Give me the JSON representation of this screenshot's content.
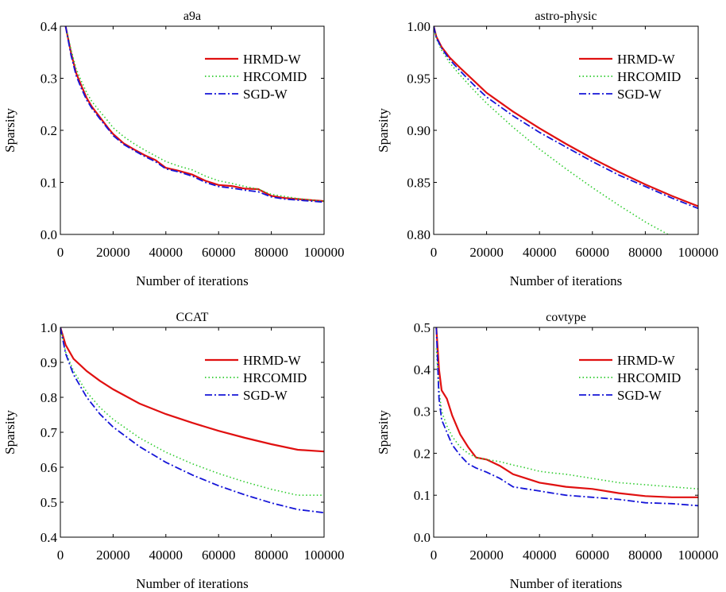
{
  "colors": {
    "hrmd": "#e01010",
    "hrcomid": "#2ecc2e",
    "sgd": "#1515d8",
    "axis": "#000000"
  },
  "chart_data": [
    {
      "type": "line",
      "title": "a9a",
      "xlabel": "Number of iterations",
      "ylabel": "Sparsity",
      "xlim": [
        0,
        100000
      ],
      "ylim": [
        0,
        0.4
      ],
      "xticks": [
        0,
        20000,
        40000,
        60000,
        80000,
        100000
      ],
      "yticks": [
        0.0,
        0.1,
        0.2,
        0.3,
        0.4
      ],
      "ytick_labels": [
        "0.0",
        "0.1",
        "0.2",
        "0.3",
        "0.4"
      ],
      "legend_position": "top-right",
      "series": [
        {
          "name": "HRMD-W",
          "style": "solid",
          "x": [
            2000,
            4000,
            6000,
            8000,
            10000,
            12000,
            15000,
            18000,
            20000,
            24000,
            28000,
            32000,
            36000,
            40000,
            45000,
            50000,
            55000,
            60000,
            65000,
            70000,
            75000,
            80000,
            85000,
            90000,
            95000,
            100000
          ],
          "y": [
            0.4,
            0.35,
            0.31,
            0.285,
            0.262,
            0.245,
            0.225,
            0.205,
            0.193,
            0.175,
            0.163,
            0.152,
            0.143,
            0.128,
            0.122,
            0.115,
            0.103,
            0.095,
            0.093,
            0.088,
            0.087,
            0.074,
            0.07,
            0.068,
            0.066,
            0.064
          ]
        },
        {
          "name": "HRCOMID",
          "style": "dotted",
          "x": [
            2000,
            4000,
            6000,
            8000,
            10000,
            12000,
            15000,
            18000,
            20000,
            24000,
            28000,
            32000,
            36000,
            40000,
            45000,
            50000,
            55000,
            60000,
            65000,
            70000,
            75000,
            80000,
            85000,
            90000,
            95000,
            100000
          ],
          "y": [
            0.4,
            0.356,
            0.318,
            0.294,
            0.272,
            0.255,
            0.236,
            0.218,
            0.205,
            0.188,
            0.174,
            0.162,
            0.151,
            0.14,
            0.131,
            0.124,
            0.112,
            0.103,
            0.098,
            0.092,
            0.087,
            0.077,
            0.073,
            0.069,
            0.066,
            0.064
          ]
        },
        {
          "name": "SGD-W",
          "style": "dashdot",
          "x": [
            2000,
            4000,
            6000,
            8000,
            10000,
            12000,
            15000,
            18000,
            20000,
            24000,
            28000,
            32000,
            36000,
            40000,
            45000,
            50000,
            55000,
            60000,
            65000,
            70000,
            75000,
            80000,
            85000,
            90000,
            95000,
            100000
          ],
          "y": [
            0.4,
            0.345,
            0.305,
            0.28,
            0.258,
            0.242,
            0.222,
            0.203,
            0.19,
            0.173,
            0.161,
            0.15,
            0.14,
            0.126,
            0.12,
            0.112,
            0.1,
            0.092,
            0.089,
            0.085,
            0.082,
            0.072,
            0.068,
            0.066,
            0.064,
            0.062
          ]
        }
      ]
    },
    {
      "type": "line",
      "title": "astro-physic",
      "xlabel": "Number of iterations",
      "ylabel": "Sparsity",
      "xlim": [
        0,
        100000
      ],
      "ylim": [
        0.8,
        1.0
      ],
      "xticks": [
        0,
        20000,
        40000,
        60000,
        80000,
        100000
      ],
      "yticks": [
        0.8,
        0.85,
        0.9,
        0.95,
        1.0
      ],
      "ytick_labels": [
        "0.80",
        "0.85",
        "0.90",
        "0.95",
        "1.00"
      ],
      "legend_position": "top-right",
      "series": [
        {
          "name": "HRMD-W",
          "style": "solid",
          "x": [
            0,
            1000,
            3000,
            6000,
            10000,
            15000,
            20000,
            30000,
            40000,
            50000,
            60000,
            70000,
            80000,
            90000,
            100000
          ],
          "y": [
            1.0,
            0.99,
            0.98,
            0.97,
            0.96,
            0.948,
            0.936,
            0.918,
            0.902,
            0.887,
            0.873,
            0.86,
            0.848,
            0.837,
            0.827
          ]
        },
        {
          "name": "HRCOMID",
          "style": "dotted",
          "x": [
            0,
            1000,
            3000,
            6000,
            10000,
            15000,
            20000,
            30000,
            40000,
            50000,
            60000,
            70000,
            80000,
            90000,
            100000
          ],
          "y": [
            1.0,
            0.988,
            0.977,
            0.965,
            0.953,
            0.939,
            0.926,
            0.903,
            0.882,
            0.863,
            0.845,
            0.828,
            0.812,
            0.798,
            0.786
          ]
        },
        {
          "name": "SGD-W",
          "style": "dashdot",
          "x": [
            0,
            1000,
            3000,
            6000,
            10000,
            15000,
            20000,
            30000,
            40000,
            50000,
            60000,
            70000,
            80000,
            90000,
            100000
          ],
          "y": [
            1.0,
            0.989,
            0.979,
            0.968,
            0.957,
            0.944,
            0.932,
            0.914,
            0.898,
            0.884,
            0.87,
            0.857,
            0.846,
            0.835,
            0.825
          ]
        }
      ]
    },
    {
      "type": "line",
      "title": "CCAT",
      "xlabel": "Number of iterations",
      "ylabel": "Sparsity",
      "xlim": [
        0,
        100000
      ],
      "ylim": [
        0.4,
        1.0
      ],
      "xticks": [
        0,
        20000,
        40000,
        60000,
        80000,
        100000
      ],
      "yticks": [
        0.4,
        0.5,
        0.6,
        0.7,
        0.8,
        0.9,
        1.0
      ],
      "ytick_labels": [
        "0.4",
        "0.5",
        "0.6",
        "0.7",
        "0.8",
        "0.9",
        "1.0"
      ],
      "legend_position": "top-right",
      "series": [
        {
          "name": "HRMD-W",
          "style": "solid",
          "x": [
            0,
            2000,
            5000,
            10000,
            15000,
            20000,
            30000,
            40000,
            50000,
            60000,
            70000,
            80000,
            90000,
            100000
          ],
          "y": [
            1.0,
            0.95,
            0.91,
            0.875,
            0.847,
            0.823,
            0.782,
            0.752,
            0.727,
            0.704,
            0.684,
            0.666,
            0.65,
            0.645
          ]
        },
        {
          "name": "HRCOMID",
          "style": "dotted",
          "x": [
            0,
            2000,
            5000,
            10000,
            15000,
            20000,
            30000,
            40000,
            50000,
            60000,
            70000,
            80000,
            90000,
            100000
          ],
          "y": [
            1.0,
            0.93,
            0.875,
            0.815,
            0.771,
            0.737,
            0.684,
            0.643,
            0.61,
            0.582,
            0.558,
            0.537,
            0.52,
            0.52
          ]
        },
        {
          "name": "SGD-W",
          "style": "dashdot",
          "x": [
            0,
            2000,
            5000,
            10000,
            15000,
            20000,
            30000,
            40000,
            50000,
            60000,
            70000,
            80000,
            90000,
            100000
          ],
          "y": [
            1.0,
            0.925,
            0.865,
            0.8,
            0.752,
            0.715,
            0.659,
            0.614,
            0.578,
            0.547,
            0.521,
            0.498,
            0.479,
            0.47
          ]
        }
      ]
    },
    {
      "type": "line",
      "title": "covtype",
      "xlabel": "Number of iterations",
      "ylabel": "Sparsity",
      "xlim": [
        0,
        100000
      ],
      "ylim": [
        0,
        0.5
      ],
      "xticks": [
        0,
        20000,
        40000,
        60000,
        80000,
        100000
      ],
      "yticks": [
        0.0,
        0.1,
        0.2,
        0.3,
        0.4,
        0.5
      ],
      "ytick_labels": [
        "0.0",
        "0.1",
        "0.2",
        "0.3",
        "0.4",
        "0.5"
      ],
      "legend_position": "top-right",
      "series": [
        {
          "name": "HRMD-W",
          "style": "solid",
          "x": [
            1000,
            2000,
            3000,
            5000,
            7000,
            10000,
            13000,
            16000,
            20000,
            25000,
            30000,
            35000,
            40000,
            45000,
            50000,
            60000,
            70000,
            80000,
            90000,
            100000
          ],
          "y": [
            0.5,
            0.4,
            0.35,
            0.33,
            0.29,
            0.245,
            0.215,
            0.19,
            0.185,
            0.17,
            0.15,
            0.14,
            0.13,
            0.125,
            0.12,
            0.115,
            0.105,
            0.098,
            0.095,
            0.095
          ]
        },
        {
          "name": "HRCOMID",
          "style": "dotted",
          "x": [
            1000,
            2000,
            3000,
            5000,
            7000,
            10000,
            13000,
            16000,
            20000,
            25000,
            30000,
            35000,
            40000,
            45000,
            50000,
            60000,
            70000,
            80000,
            90000,
            100000
          ],
          "y": [
            0.45,
            0.35,
            0.3,
            0.265,
            0.24,
            0.215,
            0.2,
            0.19,
            0.185,
            0.18,
            0.172,
            0.165,
            0.157,
            0.153,
            0.15,
            0.14,
            0.13,
            0.125,
            0.12,
            0.115
          ]
        },
        {
          "name": "SGD-W",
          "style": "dashdot",
          "x": [
            1000,
            2000,
            3000,
            5000,
            7000,
            10000,
            13000,
            16000,
            20000,
            25000,
            30000,
            35000,
            40000,
            45000,
            50000,
            60000,
            70000,
            80000,
            90000,
            100000
          ],
          "y": [
            0.5,
            0.33,
            0.28,
            0.25,
            0.22,
            0.195,
            0.175,
            0.165,
            0.155,
            0.14,
            0.12,
            0.115,
            0.11,
            0.105,
            0.1,
            0.095,
            0.09,
            0.082,
            0.08,
            0.075
          ]
        }
      ]
    }
  ]
}
